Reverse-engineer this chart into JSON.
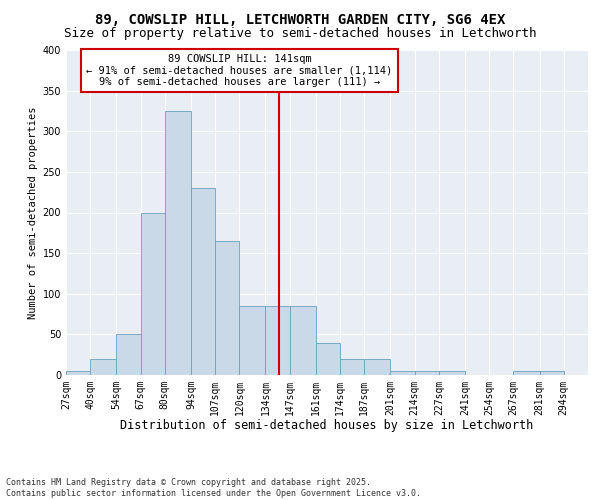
{
  "title1": "89, COWSLIP HILL, LETCHWORTH GARDEN CITY, SG6 4EX",
  "title2": "Size of property relative to semi-detached houses in Letchworth",
  "xlabel": "Distribution of semi-detached houses by size in Letchworth",
  "ylabel": "Number of semi-detached properties",
  "bin_labels": [
    "27sqm",
    "40sqm",
    "54sqm",
    "67sqm",
    "80sqm",
    "94sqm",
    "107sqm",
    "120sqm",
    "134sqm",
    "147sqm",
    "161sqm",
    "174sqm",
    "187sqm",
    "201sqm",
    "214sqm",
    "227sqm",
    "241sqm",
    "254sqm",
    "267sqm",
    "281sqm",
    "294sqm"
  ],
  "bin_edges": [
    27,
    40,
    54,
    67,
    80,
    94,
    107,
    120,
    134,
    147,
    161,
    174,
    187,
    201,
    214,
    227,
    241,
    254,
    267,
    281,
    294,
    307
  ],
  "bar_heights": [
    5,
    20,
    50,
    200,
    325,
    230,
    165,
    85,
    85,
    85,
    40,
    20,
    20,
    5,
    5,
    5,
    0,
    0,
    5,
    5,
    0
  ],
  "bar_color": "#c9d9e8",
  "bar_edgecolor": "#6a9fc0",
  "vline_x": 141,
  "vline_color": "#cc0000",
  "annotation_text": "89 COWSLIP HILL: 141sqm\n← 91% of semi-detached houses are smaller (1,114)\n9% of semi-detached houses are larger (111) →",
  "annotation_box_color": "#ffffff",
  "annotation_box_edgecolor": "#cc0000",
  "ylim": [
    0,
    400
  ],
  "yticks": [
    0,
    50,
    100,
    150,
    200,
    250,
    300,
    350,
    400
  ],
  "bg_color": "#e8eef4",
  "footer_text": "Contains HM Land Registry data © Crown copyright and database right 2025.\nContains public sector information licensed under the Open Government Licence v3.0.",
  "title1_fontsize": 10,
  "title2_fontsize": 9,
  "xlabel_fontsize": 8.5,
  "ylabel_fontsize": 7.5,
  "tick_fontsize": 7,
  "annotation_fontsize": 7.5,
  "footer_fontsize": 6
}
